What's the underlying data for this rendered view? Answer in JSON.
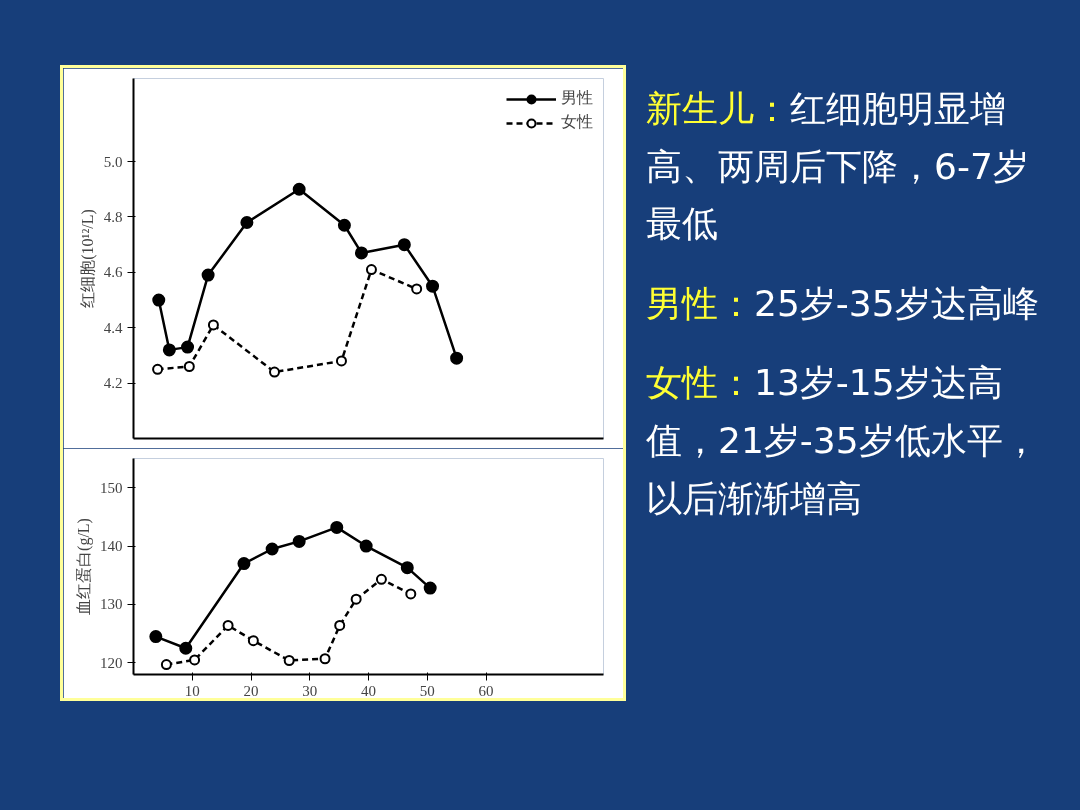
{
  "chart_data": [
    {
      "type": "line",
      "ylabel": "红细胞(10¹²/L)",
      "xlim": [
        0,
        80
      ],
      "ylim": [
        4.0,
        5.3
      ],
      "yticks": [
        {
          "value": 4.2,
          "label": "4.2"
        },
        {
          "value": 4.4,
          "label": "4.4"
        },
        {
          "value": 4.6,
          "label": "4.6"
        },
        {
          "value": 4.8,
          "label": "4.8"
        },
        {
          "value": 5.0,
          "label": "5.0"
        }
      ],
      "xticks": [
        10,
        20,
        30,
        40,
        50,
        60
      ],
      "tick_labels": "y",
      "grid": false,
      "legend": "top right",
      "marker": "circle",
      "series": [
        {
          "name": "男性",
          "color": "#000000",
          "line_style": "solid",
          "x": [
            4.3,
            6.1,
            9.2,
            12.7,
            19.3,
            28.2,
            35.9,
            38.8,
            46.1,
            50.9,
            55.0
          ],
          "values": [
            4.5,
            4.32,
            4.33,
            4.59,
            4.78,
            4.9,
            4.77,
            4.67,
            4.7,
            4.55,
            4.29
          ]
        },
        {
          "name": "女性",
          "color": "#000000",
          "line_style": "dashed",
          "x": [
            4.1,
            9.5,
            13.6,
            24.0,
            35.4,
            40.5,
            48.2
          ],
          "values": [
            4.25,
            4.26,
            4.41,
            4.24,
            4.28,
            4.61,
            4.54
          ]
        }
      ],
      "annotations": [
        "新生儿：",
        "红细胞明显增高、两周后下降，6-7岁最低",
        "男性：",
        "25岁-35岁达高峰",
        "女性：",
        "13岁-15岁达高值，21岁-35岁低水平，以后渐渐增高"
      ]
    },
    {
      "type": "line",
      "ylabel": "血红蛋白(g/L)",
      "xlim": [
        0,
        80
      ],
      "ylim": [
        118,
        155
      ],
      "yticks": [
        120,
        130,
        140,
        150
      ],
      "xticks": [
        10,
        20,
        30,
        40,
        50,
        60
      ],
      "grid": false,
      "marker": "circle",
      "series": [
        {
          "color": "#000000",
          "line_style": "solid",
          "x": [
            3.8,
            8.9,
            18.8,
            23.6,
            28.2,
            34.6,
            39.6,
            46.6,
            50.5
          ],
          "values": [
            124.5,
            122.5,
            137,
            139.5,
            140.8,
            143.2,
            140,
            136.3,
            132.8
          ]
        },
        {
          "color": "#000000",
          "line_style": "dashed",
          "x": [
            5.6,
            10.4,
            16.1,
            20.4,
            26.5,
            32.6,
            35.1,
            37.9,
            42.2,
            47.2
          ],
          "values": [
            119.7,
            120.5,
            126.4,
            123.8,
            120.4,
            120.7,
            126.4,
            130.9,
            134.3,
            131.8
          ]
        }
      ]
    }
  ]
}
